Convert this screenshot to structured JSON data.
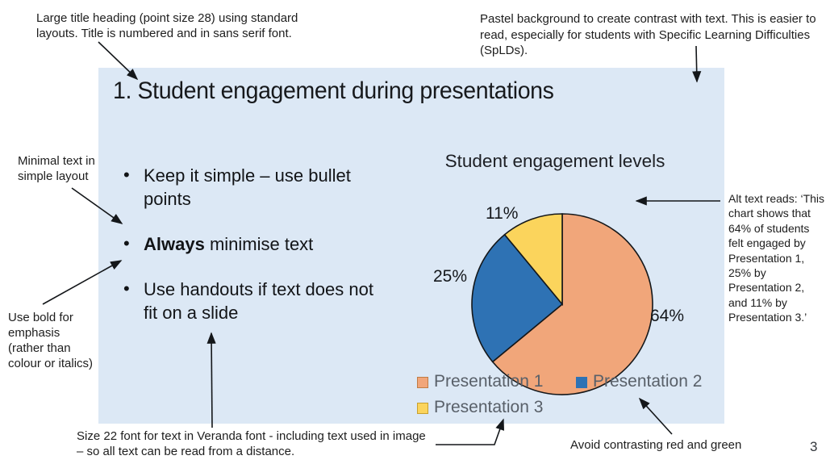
{
  "page": {
    "number": "3",
    "background": "#ffffff"
  },
  "slide": {
    "background_color": "#dce8f5",
    "title": "1. Student engagement during presentations",
    "bullets": [
      {
        "bold": "",
        "text": "Keep it simple – use bullet points"
      },
      {
        "bold": "Always",
        "text": " minimise text"
      },
      {
        "bold": "",
        "text": "Use handouts if text does not fit on a slide"
      }
    ]
  },
  "chart_data": {
    "type": "pie",
    "title": "Student engagement levels",
    "categories": [
      "Presentation 1",
      "Presentation 2",
      "Presentation 3"
    ],
    "values": [
      64,
      25,
      11
    ],
    "labels": [
      "64%",
      "25%",
      "11%"
    ],
    "colors": [
      "#f1a67a",
      "#2e72b4",
      "#fbd45c"
    ],
    "swatch_border_colors": [
      "#c07c44",
      "#2e72b4",
      "#c7a02f"
    ],
    "outline_color": "#14171a",
    "start_angle": "12 o'clock",
    "direction": "clockwise",
    "legend_position": "bottom"
  },
  "annotations": {
    "top_left": "Large title heading (point size 28) using standard layouts. Title is numbered and in sans serif font.",
    "top_right": "Pastel background to create contrast with text. This is easier to read, especially for students with Specific Learning Difficulties (SpLDs).",
    "left_minimal": "Minimal text in simple layout",
    "left_bold": "Use bold for emphasis (rather than colour or italics)",
    "right_alt": "Alt text reads: ‘This chart shows that 64% of students felt engaged by Presentation 1, 25% by Presentation 2, and 11% by Presentation 3.’",
    "bottom_font": "Size 22 font for text in Veranda font - including text used in image – so all text can be read from a distance.",
    "bottom_contrast": "Avoid contrasting red and green"
  }
}
